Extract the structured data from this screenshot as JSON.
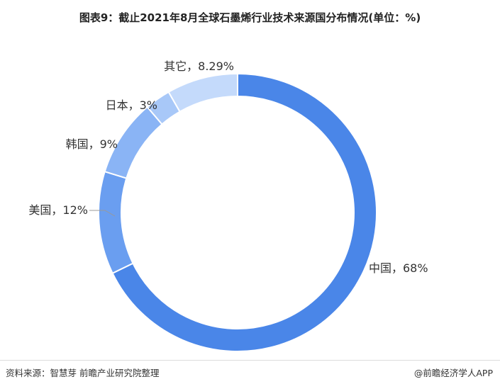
{
  "title": "图表9：截止2021年8月全球石墨烯行业技术来源国分布情况(单位：%)",
  "footer": {
    "source": "资料来源：智慧芽 前瞻产业研究院整理",
    "brand": "@前瞻经济学人APP"
  },
  "chart_data": {
    "type": "pie",
    "title": "图表9：截止2021年8月全球石墨烯行业技术来源国分布情况(单位：%)",
    "donut": true,
    "slices": [
      {
        "label": "中国",
        "value": 68,
        "text": "中国，68%",
        "color": "#4a86e8"
      },
      {
        "label": "美国",
        "value": 12,
        "text": "美国，12%",
        "color": "#6a9ef0"
      },
      {
        "label": "韩国",
        "value": 9,
        "text": "韩国，9%",
        "color": "#8ab4f5"
      },
      {
        "label": "日本",
        "value": 3,
        "text": "日本，3%",
        "color": "#a8c8f8"
      },
      {
        "label": "其它",
        "value": 8.29,
        "text": "其它，8.29%",
        "color": "#c4dafb"
      }
    ]
  }
}
